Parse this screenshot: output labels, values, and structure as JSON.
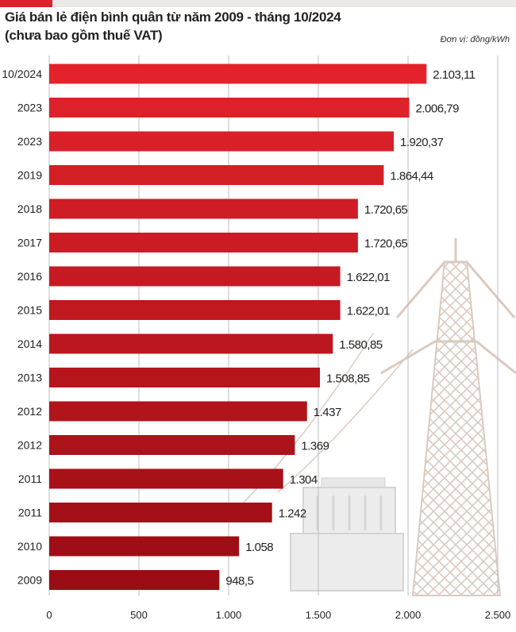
{
  "chart_data": {
    "type": "bar",
    "orientation": "horizontal",
    "title": "Giá bán lẻ điện bình quân từ năm 2009 - tháng 10/2024",
    "subtitle": "(chưa bao gồm thuế VAT)",
    "unit": "Đơn vị: đồng/kWh",
    "categories": [
      "10/2024",
      "2023",
      "2023",
      "2019",
      "2018",
      "2017",
      "2016",
      "2015",
      "2014",
      "2013",
      "2012",
      "2012",
      "2011",
      "2011",
      "2010",
      "2009"
    ],
    "values": [
      2103.11,
      2006.79,
      1920.37,
      1864.44,
      1720.65,
      1720.65,
      1622.01,
      1622.01,
      1580.85,
      1508.85,
      1437,
      1369,
      1304,
      1242,
      1058,
      948.5
    ],
    "value_labels": [
      "2.103,11",
      "2.006,79",
      "1.920,37",
      "1.864,44",
      "1.720,65",
      "1.720,65",
      "1.622,01",
      "1.622,01",
      "1.580,85",
      "1.508,85",
      "1.437",
      "1.369",
      "1.304",
      "1.242",
      "1.058",
      "948,5"
    ],
    "xlim": [
      0,
      2500
    ],
    "x_ticks": [
      0,
      500,
      1000,
      1500,
      2000,
      2500
    ],
    "x_tick_labels": [
      "0",
      "500",
      "1.000",
      "1.500",
      "2.000",
      "2.500"
    ],
    "grid": "vertical",
    "colors": {
      "bar_top": "#e3222b",
      "bar_bottom": "#9a0d14",
      "accent": "#d8232a",
      "tower": "#d9c8bd",
      "transformer": "#e4e4e4"
    }
  }
}
